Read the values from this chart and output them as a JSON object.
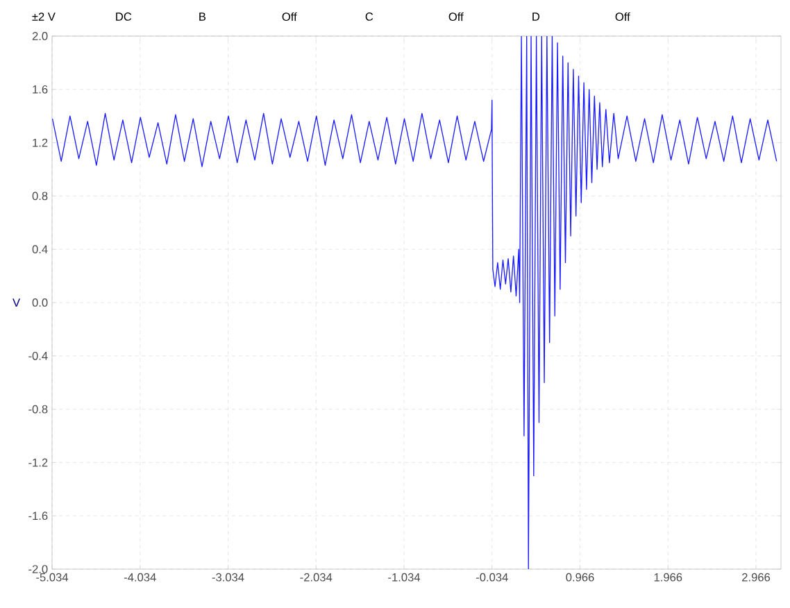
{
  "chart_data": {
    "type": "line",
    "ylabel": "V",
    "annotations": [
      "±2 V",
      "DC",
      "B",
      "Off",
      "C",
      "Off",
      "D",
      "Off"
    ],
    "xlim": [
      -5.034,
      3.25
    ],
    "xticks": [
      -5.034,
      -4.034,
      -3.034,
      -2.034,
      -1.034,
      -0.034,
      0.966,
      1.966,
      2.966
    ],
    "ylim": [
      -2.0,
      2.0
    ],
    "yticks": [
      {
        "value": -2.0,
        "label": "-2.0"
      },
      {
        "value": -1.6,
        "label": "-1.6"
      },
      {
        "value": -1.2,
        "label": "-1.2"
      },
      {
        "value": -0.8,
        "label": "-0.8"
      },
      {
        "value": -0.4,
        "label": "-0.4"
      },
      {
        "value": 0.0,
        "label": "0.0"
      },
      {
        "value": 0.4,
        "label": "0.4"
      },
      {
        "value": 0.8,
        "label": "0.8"
      },
      {
        "value": 1.2,
        "label": "1.2"
      },
      {
        "value": 1.6,
        "label": "1.6"
      },
      {
        "value": 2.0,
        "label": "2.0"
      }
    ],
    "grid": true,
    "series": [
      {
        "color": "#1a1aff",
        "x": [
          -5.03,
          -4.93,
          -4.83,
          -4.73,
          -4.63,
          -4.53,
          -4.43,
          -4.33,
          -4.23,
          -4.13,
          -4.03,
          -3.93,
          -3.83,
          -3.73,
          -3.63,
          -3.53,
          -3.43,
          -3.33,
          -3.23,
          -3.13,
          -3.03,
          -2.93,
          -2.83,
          -2.73,
          -2.63,
          -2.53,
          -2.43,
          -2.33,
          -2.23,
          -2.13,
          -2.03,
          -1.93,
          -1.83,
          -1.73,
          -1.63,
          -1.53,
          -1.43,
          -1.33,
          -1.23,
          -1.13,
          -1.03,
          -0.93,
          -0.83,
          -0.73,
          -0.63,
          -0.53,
          -0.43,
          -0.33,
          -0.23,
          -0.13,
          -0.04,
          -0.034,
          -0.03,
          -0.025,
          0.0,
          0.03,
          0.06,
          0.09,
          0.12,
          0.15,
          0.18,
          0.21,
          0.24,
          0.27,
          0.28,
          0.3,
          0.33,
          0.36,
          0.38,
          0.41,
          0.44,
          0.47,
          0.5,
          0.53,
          0.56,
          0.59,
          0.62,
          0.65,
          0.68,
          0.71,
          0.74,
          0.77,
          0.8,
          0.83,
          0.86,
          0.89,
          0.92,
          0.95,
          0.98,
          1.01,
          1.04,
          1.07,
          1.1,
          1.13,
          1.16,
          1.19,
          1.22,
          1.26,
          1.3,
          1.35,
          1.4,
          1.5,
          1.6,
          1.7,
          1.8,
          1.9,
          2.0,
          2.1,
          2.2,
          2.3,
          2.4,
          2.5,
          2.6,
          2.7,
          2.8,
          2.9,
          3.0,
          3.1,
          3.2
        ],
        "values": [
          1.38,
          1.06,
          1.4,
          1.08,
          1.36,
          1.03,
          1.42,
          1.07,
          1.37,
          1.05,
          1.39,
          1.09,
          1.35,
          1.04,
          1.41,
          1.06,
          1.38,
          1.02,
          1.36,
          1.08,
          1.4,
          1.05,
          1.37,
          1.07,
          1.42,
          1.04,
          1.38,
          1.09,
          1.36,
          1.06,
          1.4,
          1.03,
          1.37,
          1.08,
          1.41,
          1.05,
          1.36,
          1.07,
          1.39,
          1.04,
          1.38,
          1.06,
          1.42,
          1.08,
          1.37,
          1.05,
          1.4,
          1.07,
          1.36,
          1.06,
          1.3,
          1.52,
          0.89,
          0.25,
          0.12,
          0.3,
          0.1,
          0.32,
          0.14,
          0.33,
          0.08,
          0.35,
          0.05,
          0.4,
          0.0,
          2.0,
          -1.0,
          2.0,
          -2.0,
          2.0,
          -1.3,
          2.0,
          -0.9,
          2.0,
          -0.6,
          2.0,
          -0.3,
          2.0,
          -0.1,
          1.95,
          0.1,
          1.85,
          0.3,
          1.8,
          0.5,
          1.75,
          0.65,
          1.7,
          0.75,
          1.65,
          0.85,
          1.6,
          0.9,
          1.55,
          1.0,
          1.5,
          1.02,
          1.45,
          1.05,
          1.42,
          1.08,
          1.4,
          1.06,
          1.38,
          1.05,
          1.41,
          1.07,
          1.37,
          1.04,
          1.39,
          1.08,
          1.36,
          1.06,
          1.4,
          1.05,
          1.38,
          1.07,
          1.37,
          1.06
        ]
      }
    ]
  }
}
